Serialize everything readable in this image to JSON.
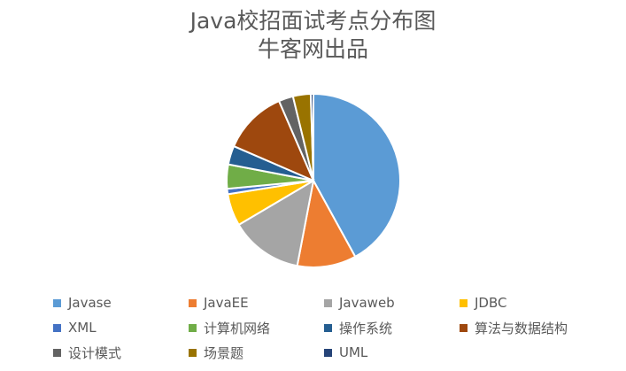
{
  "chart_data": {
    "type": "pie",
    "title": "Java校招面试考点分布图",
    "subtitle": "牛客网出品",
    "legend_position": "bottom",
    "series": [
      {
        "name": "Javase",
        "value": 42.0,
        "color": "#5B9BD5"
      },
      {
        "name": "JavaEE",
        "value": 11.0,
        "color": "#ED7D31"
      },
      {
        "name": "Javaweb",
        "value": 13.5,
        "color": "#A5A5A5"
      },
      {
        "name": "JDBC",
        "value": 6.0,
        "color": "#FFC000"
      },
      {
        "name": "XML",
        "value": 1.0,
        "color": "#4472C4"
      },
      {
        "name": "计算机网络",
        "value": 4.5,
        "color": "#70AD47"
      },
      {
        "name": "操作系统",
        "value": 3.5,
        "color": "#255E91"
      },
      {
        "name": "算法与数据结构",
        "value": 12.0,
        "color": "#9E480E"
      },
      {
        "name": "设计模式",
        "value": 2.7,
        "color": "#636363"
      },
      {
        "name": "场景题",
        "value": 3.3,
        "color": "#997300"
      },
      {
        "name": "UML",
        "value": 0.5,
        "color": "#264478"
      }
    ]
  }
}
